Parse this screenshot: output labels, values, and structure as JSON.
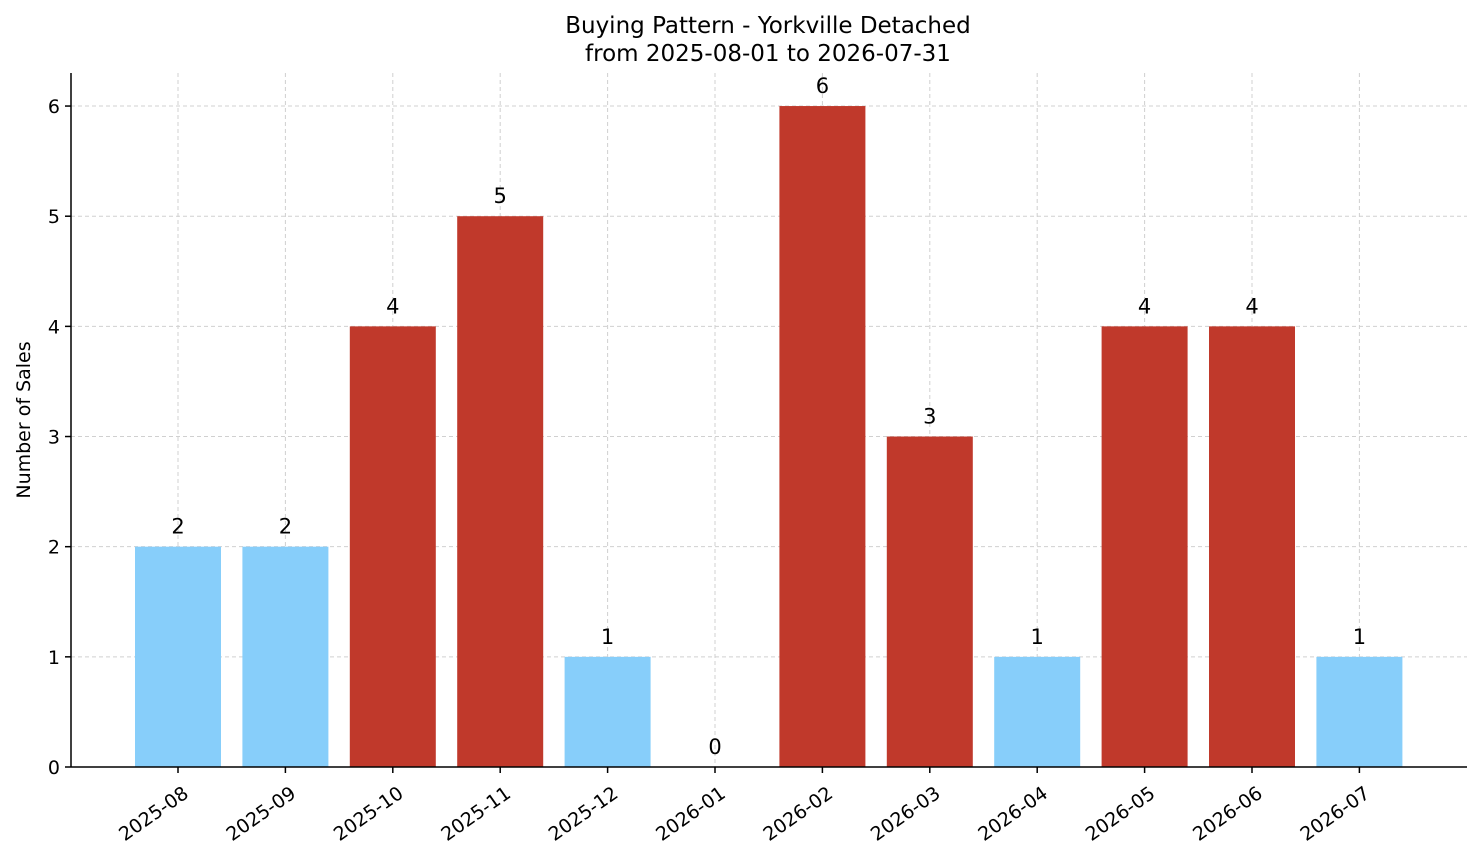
{
  "colors": {
    "high": "#c0392b",
    "low": "#87cefa",
    "grid": "#d0d0d0",
    "axis": "#000000"
  },
  "chart_data": {
    "type": "bar",
    "title_line1": "Buying Pattern - Yorkville Detached",
    "title_line2": "from 2025-08-01 to 2026-07-31",
    "xlabel": "",
    "ylabel": "Number of Sales",
    "ylim": [
      0,
      6.3
    ],
    "yticks": [
      0,
      1,
      2,
      3,
      4,
      5,
      6
    ],
    "grid": true,
    "categories": [
      "2025-08",
      "2025-09",
      "2025-10",
      "2025-11",
      "2025-12",
      "2026-01",
      "2026-02",
      "2026-03",
      "2026-04",
      "2026-05",
      "2026-06",
      "2026-07"
    ],
    "values": [
      2,
      2,
      4,
      5,
      1,
      0,
      6,
      3,
      1,
      4,
      4,
      1
    ],
    "bar_colors": [
      "low",
      "low",
      "high",
      "high",
      "low",
      "low",
      "high",
      "high",
      "low",
      "high",
      "high",
      "low"
    ]
  }
}
